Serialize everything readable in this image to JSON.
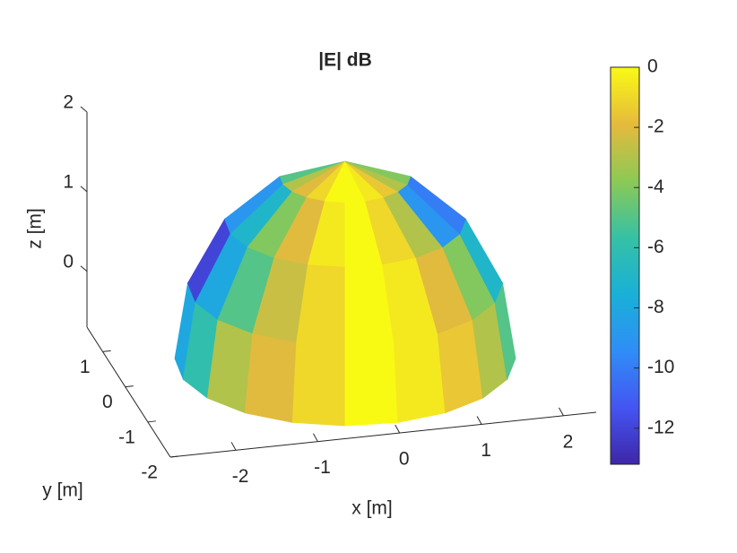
{
  "chart_data": {
    "type": "surface3d",
    "title": "|E| dB",
    "xlabel": "x [m]",
    "ylabel": "y [m]",
    "zlabel": "z [m]",
    "xlim": [
      -2.8,
      2.4
    ],
    "xticks": [
      -2,
      -1,
      0,
      1,
      2
    ],
    "ylim": [
      -2,
      1.7
    ],
    "yticks": [
      -2,
      -1,
      0,
      1
    ],
    "zlim": [
      -0.7,
      2
    ],
    "zticks": [
      0,
      1,
      2
    ],
    "clim": [
      -13.2,
      0
    ],
    "cticks": [
      -12,
      -10,
      -8,
      -6,
      -4,
      -2,
      0
    ],
    "colormap": [
      "#3e26a8",
      "#4455f2",
      "#2f8ef6",
      "#19b0d8",
      "#36c1a4",
      "#8dc955",
      "#e6ba3c",
      "#f9fa14"
    ],
    "values": [
      [
        -8,
        -6,
        -3,
        -2,
        -1,
        0,
        -0.5,
        -1.5,
        -3,
        -5
      ],
      [
        -12,
        -8,
        -5,
        -2.5,
        -1,
        0,
        -0.5,
        -2,
        -4,
        -7
      ],
      [
        -9,
        -7,
        -4,
        -2,
        -0.5,
        0,
        -1,
        -3,
        -9,
        -10
      ],
      [
        -5,
        -3,
        -2,
        -1,
        0,
        0,
        -0.5,
        -1.5,
        -3,
        -4
      ]
    ]
  }
}
